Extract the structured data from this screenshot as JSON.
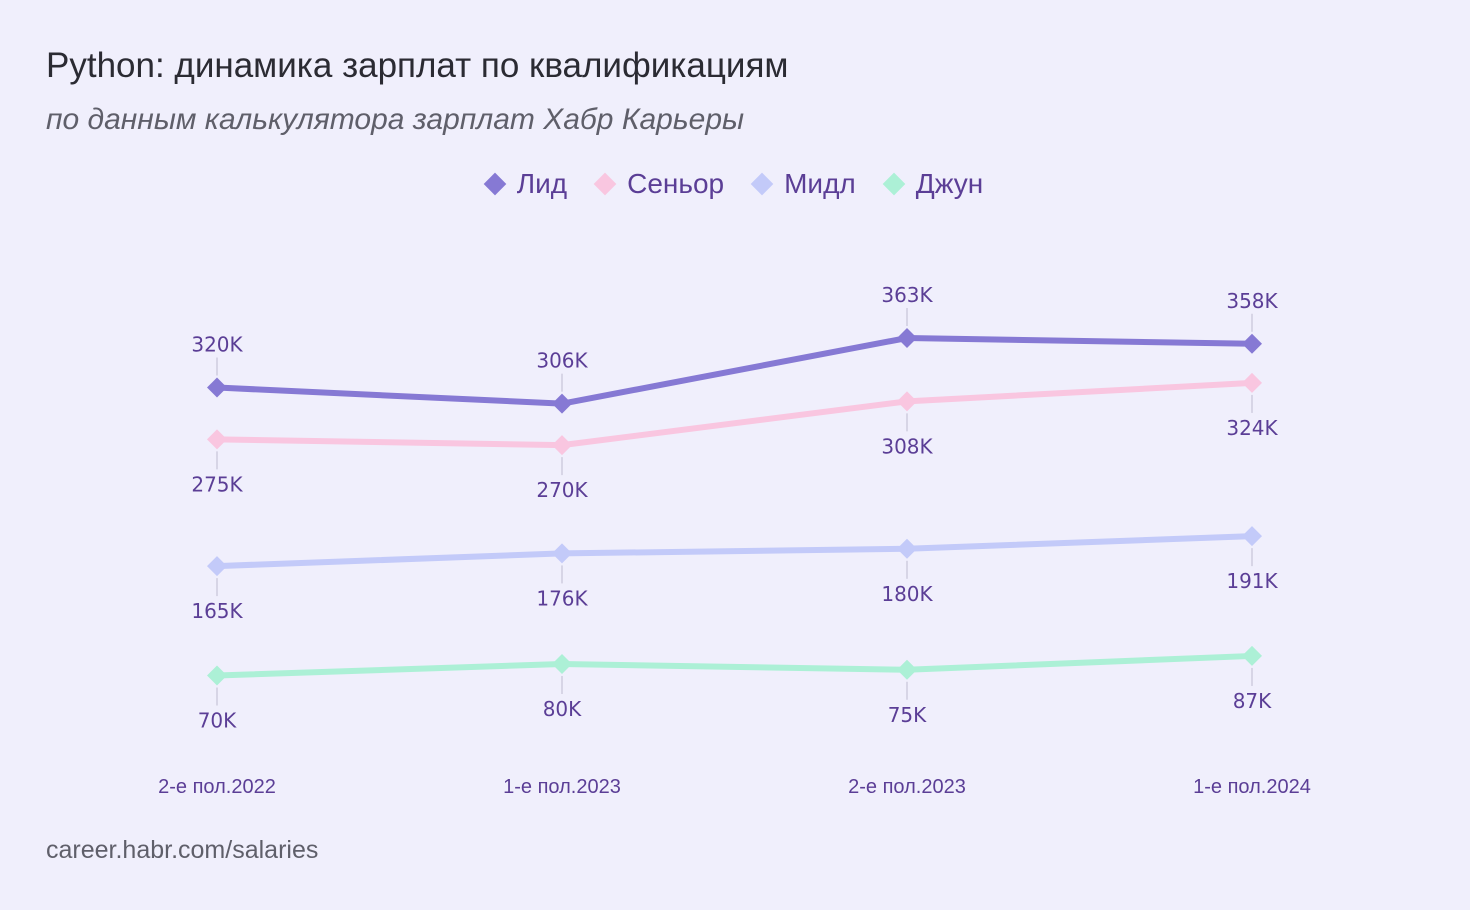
{
  "header": {
    "title": "Python: динамика зарплат по квалификациям",
    "subtitle": "по данным калькулятора зарплат Хабр Карьеры"
  },
  "footer": {
    "source": "career.habr.com/salaries"
  },
  "chart_data": {
    "type": "line",
    "title": "Python: динамика зарплат по квалификациям",
    "subtitle": "по данным калькулятора зарплат Хабр Карьеры",
    "xlabel": "",
    "ylabel": "",
    "ylim": [
      0,
      380
    ],
    "grid": false,
    "legend_position": "top-center",
    "categories": [
      "2-е пол.2022",
      "1-е пол.2023",
      "2-е пол.2023",
      "1-е пол.2024"
    ],
    "series": [
      {
        "name": "Лид",
        "color": "#8679d4",
        "values": [
          320,
          306,
          363,
          358
        ],
        "labels": [
          "320K",
          "306K",
          "363K",
          "358K"
        ],
        "label_position": "above"
      },
      {
        "name": "Сеньор",
        "color": "#f9c6e0",
        "values": [
          275,
          270,
          308,
          324
        ],
        "labels": [
          "275K",
          "270K",
          "308K",
          "324K"
        ],
        "label_position": "below"
      },
      {
        "name": "Мидл",
        "color": "#c3caf9",
        "values": [
          165,
          176,
          180,
          191
        ],
        "labels": [
          "165K",
          "176K",
          "180K",
          "191K"
        ],
        "label_position": "below"
      },
      {
        "name": "Джун",
        "color": "#acf0d6",
        "values": [
          70,
          80,
          75,
          87
        ],
        "labels": [
          "70K",
          "80K",
          "75K",
          "87K"
        ],
        "label_position": "below"
      }
    ]
  }
}
